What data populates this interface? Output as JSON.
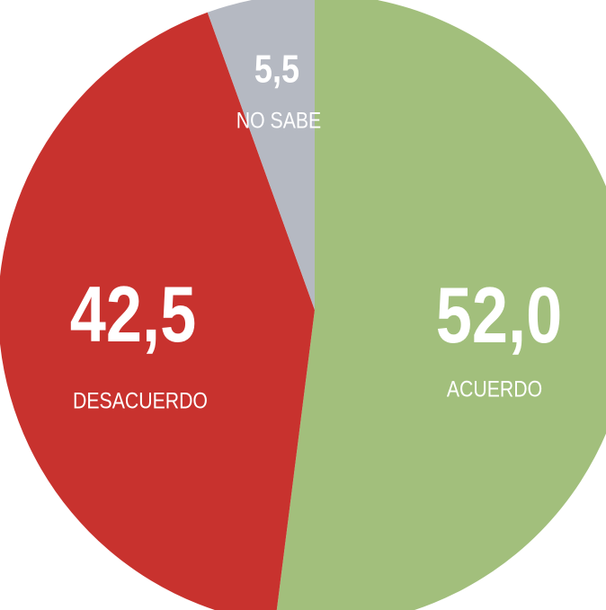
{
  "chart_data": {
    "type": "pie",
    "categories": [
      "ACUERDO",
      "DESACUERDO",
      "NO SABE"
    ],
    "values": [
      52.0,
      42.5,
      5.5
    ],
    "value_labels": [
      "52,0",
      "42,5",
      "5,5"
    ],
    "colors": [
      "#a2bf7c",
      "#c8322e",
      "#b5b9c2"
    ]
  }
}
